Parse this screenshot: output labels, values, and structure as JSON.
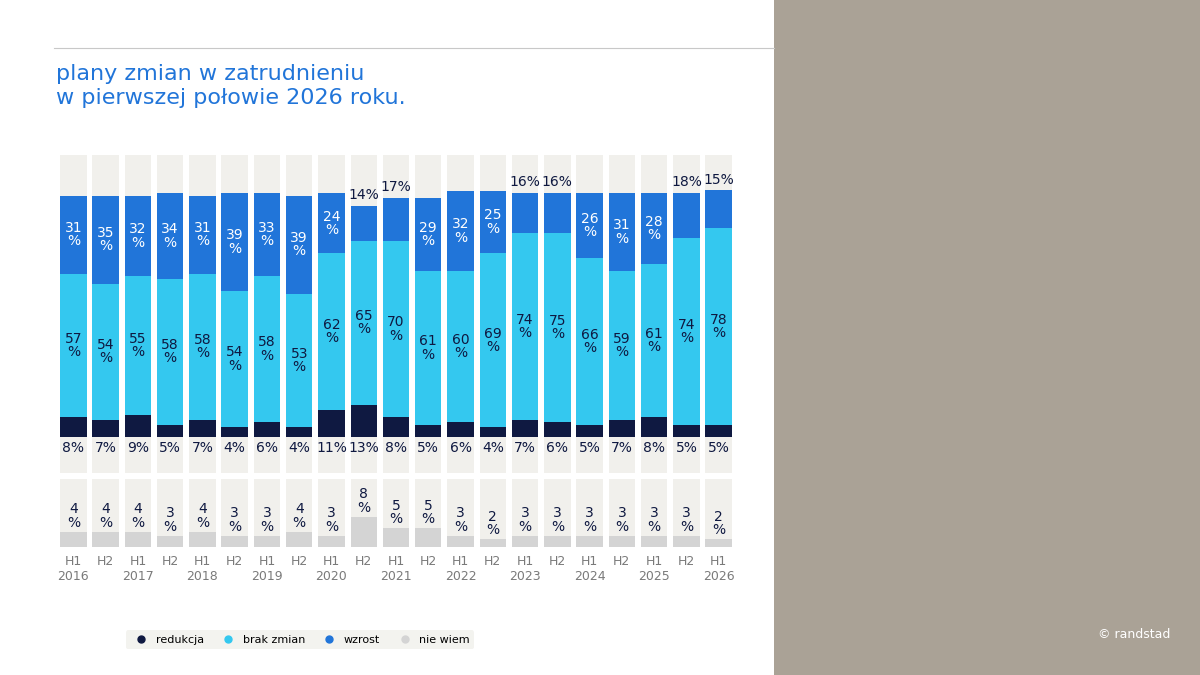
{
  "chart_data": {
    "type": "bar",
    "stacked": true,
    "title": "plany zmian w zatrudnieniu\nw pierwszej połowie 2026 roku.",
    "copyright": "© randstad",
    "categories": [
      "H1\n2016",
      "H2",
      "H1\n2017",
      "H2",
      "H1\n2018",
      "H2",
      "H1\n2019",
      "H2",
      "H1\n2020",
      "H2",
      "H1\n2021",
      "H2",
      "H1\n2022",
      "H2",
      "H1\n2023",
      "H2",
      "H1\n2024",
      "H2",
      "H1\n2025",
      "H2",
      "H1\n2026"
    ],
    "series": [
      {
        "name": "redukcja",
        "color": "#0f1941",
        "values": [
          8,
          7,
          9,
          5,
          7,
          4,
          6,
          4,
          11,
          13,
          8,
          5,
          6,
          4,
          7,
          6,
          5,
          7,
          8,
          5,
          5
        ],
        "value_labels": [
          "8%",
          "7%",
          "9%",
          "5%",
          "7%",
          "4%",
          "6%",
          "4%",
          "11%",
          "13%",
          "8%",
          "5%",
          "6%",
          "4%",
          "7%",
          "6%",
          "5%",
          "7%",
          "8%",
          "5%",
          "5%"
        ]
      },
      {
        "name": "brak zmian",
        "color": "#34c8ef",
        "values": [
          57,
          54,
          55,
          58,
          58,
          54,
          58,
          53,
          62,
          65,
          70,
          61,
          60,
          69,
          74,
          75,
          66,
          59,
          61,
          74,
          78
        ],
        "value_labels": [
          "57\n%",
          "54\n%",
          "55\n%",
          "58\n%",
          "58\n%",
          "54\n%",
          "58\n%",
          "53\n%",
          "62\n%",
          "65\n%",
          "70\n%",
          "61\n%",
          "60\n%",
          "69\n%",
          "74\n%",
          "75\n%",
          "66\n%",
          "59\n%",
          "61\n%",
          "74\n%",
          "78\n%"
        ]
      },
      {
        "name": "wzrost",
        "color": "#2175d9",
        "values": [
          31,
          35,
          32,
          34,
          31,
          39,
          33,
          39,
          24,
          14,
          17,
          29,
          32,
          25,
          16,
          16,
          26,
          31,
          28,
          18,
          15
        ],
        "value_labels": [
          "31\n%",
          "35\n%",
          "32\n%",
          "34\n%",
          "31\n%",
          "39\n%",
          "33\n%",
          "39\n%",
          "24\n%",
          "14%",
          "17%",
          "29\n%",
          "32\n%",
          "25\n%",
          "16%",
          "16%",
          "26\n%",
          "31\n%",
          "28\n%",
          "18%",
          "15%"
        ]
      },
      {
        "name": "nie wiem",
        "color": "#d4d4d4",
        "type": "bar",
        "axis": "y2",
        "values": [
          4,
          4,
          4,
          3,
          4,
          3,
          3,
          4,
          3,
          8,
          5,
          5,
          3,
          2,
          3,
          3,
          3,
          3,
          3,
          3,
          2
        ],
        "value_labels": [
          "4\n%",
          "4\n%",
          "4\n%",
          "3\n%",
          "4\n%",
          "3\n%",
          "3\n%",
          "4\n%",
          "3\n%",
          "8\n%",
          "5\n%",
          "5\n%",
          "3\n%",
          "2\n%",
          "3\n%",
          "3\n%",
          "3\n%",
          "3\n%",
          "3\n%",
          "3\n%",
          "2\n%"
        ]
      }
    ],
    "ylim": [
      -14,
      112
    ],
    "yticks": [],
    "y2lim": [
      0,
      18
    ],
    "y2ticks": [],
    "data_labels": true,
    "tick_labels": "x",
    "grid": false,
    "legend": "lower left"
  }
}
